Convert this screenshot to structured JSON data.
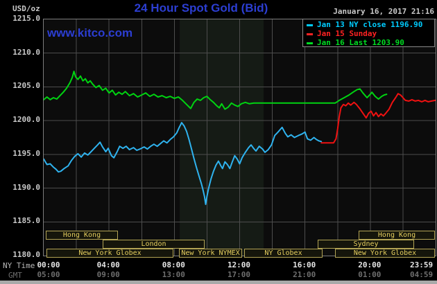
{
  "header": {
    "unit": "USD/oz",
    "title": "24 Hour Spot Gold (Bid)",
    "datetime": "January 16, 2017 21:16",
    "watermark": "www.kitco.com"
  },
  "legend": {
    "items": [
      {
        "label": "Jan 13 NY close 1196.90",
        "color": "#00ccff"
      },
      {
        "label": "Jan 15 Sunday",
        "color": "#ff2222"
      },
      {
        "label": "Jan 16 Last 1203.90",
        "color": "#00dd22"
      }
    ]
  },
  "axes": {
    "ny_label": "NY Time",
    "gmt_label": "GMT",
    "y_ticks": [
      "1215.0",
      "1210.0",
      "1205.0",
      "1200.0",
      "1195.0",
      "1190.0",
      "1185.0",
      "1180.0"
    ],
    "x_ticks_ny": [
      "00:00",
      "04:00",
      "08:00",
      "12:00",
      "16:00",
      "20:00",
      "23:59"
    ],
    "x_ticks_gmt": [
      "05:00",
      "09:00",
      "13:00",
      "17:00",
      "21:00",
      "01:00",
      "04:59"
    ],
    "x_tick_hours": [
      0,
      4,
      8,
      12,
      16,
      20,
      23.983
    ]
  },
  "sessions": {
    "rows": [
      [
        {
          "name": "Hong Kong",
          "start": 0.17,
          "end": 4.59
        },
        {
          "name": "Hong Kong",
          "start": 19.33,
          "end": 24
        }
      ],
      [
        {
          "name": "London",
          "start": 3.65,
          "end": 9.9
        },
        {
          "name": "Sydney",
          "start": 16.83,
          "end": 22.73
        }
      ],
      [
        {
          "name": "New York Globex",
          "start": 0.21,
          "end": 7.99
        },
        {
          "name": "New York NYMEX",
          "start": 8.33,
          "end": 12.19
        },
        {
          "name": "NY Globex",
          "start": 12.32,
          "end": 17.12
        },
        {
          "name": "New York Globex",
          "start": 17.89,
          "end": 24
        }
      ]
    ]
  },
  "colors": {
    "background": "#000000",
    "plot_background": "#0c0c0c",
    "nymex_band": "#151b15",
    "grid": "#4d4d4d",
    "plot_border": "#7d7d7d",
    "title_blue": "#2c3ed2",
    "axis_text": "#c9c9c9",
    "gmt_text": "#6e6e6e",
    "session_border": "#b3a455",
    "session_text": "#e6cf5f"
  },
  "chart_data": {
    "type": "line",
    "title": "24 Hour Spot Gold (Bid)",
    "ylabel": "USD/oz",
    "ylim": [
      1180,
      1215
    ],
    "y_tick_step": 5,
    "xlim_hours": [
      0,
      24
    ],
    "grid": true,
    "x_grid_step_hours": 2,
    "legend_position": "top-right",
    "nymex_band_hours": [
      8.33,
      13.47
    ],
    "series": [
      {
        "name": "Jan 13 NY close",
        "close_value": 1196.9,
        "line_color": "#2fb3ef",
        "points": [
          [
            0,
            1194.3
          ],
          [
            0.2,
            1193.5
          ],
          [
            0.4,
            1193.6
          ],
          [
            0.6,
            1193.1
          ],
          [
            0.75,
            1192.8
          ],
          [
            0.9,
            1192.4
          ],
          [
            1.05,
            1192.5
          ],
          [
            1.25,
            1192.9
          ],
          [
            1.5,
            1193.3
          ],
          [
            1.7,
            1194.1
          ],
          [
            1.9,
            1194.7
          ],
          [
            2.1,
            1195.1
          ],
          [
            2.3,
            1194.6
          ],
          [
            2.5,
            1195.2
          ],
          [
            2.7,
            1194.9
          ],
          [
            2.9,
            1195.4
          ],
          [
            3.1,
            1195.9
          ],
          [
            3.3,
            1196.4
          ],
          [
            3.45,
            1196.8
          ],
          [
            3.6,
            1196.1
          ],
          [
            3.8,
            1195.4
          ],
          [
            3.95,
            1195.9
          ],
          [
            4.15,
            1194.8
          ],
          [
            4.3,
            1194.5
          ],
          [
            4.5,
            1195.4
          ],
          [
            4.65,
            1196.2
          ],
          [
            4.85,
            1195.9
          ],
          [
            5.05,
            1196.2
          ],
          [
            5.25,
            1195.7
          ],
          [
            5.5,
            1196.0
          ],
          [
            5.7,
            1195.6
          ],
          [
            5.9,
            1195.8
          ],
          [
            6.15,
            1196.1
          ],
          [
            6.35,
            1195.8
          ],
          [
            6.55,
            1196.2
          ],
          [
            6.75,
            1196.5
          ],
          [
            6.95,
            1196.2
          ],
          [
            7.15,
            1196.6
          ],
          [
            7.35,
            1197.0
          ],
          [
            7.55,
            1196.7
          ],
          [
            7.75,
            1197.2
          ],
          [
            7.95,
            1197.6
          ],
          [
            8.15,
            1198.2
          ],
          [
            8.3,
            1199.0
          ],
          [
            8.45,
            1199.7
          ],
          [
            8.6,
            1199.2
          ],
          [
            8.75,
            1198.4
          ],
          [
            8.9,
            1197.2
          ],
          [
            9.05,
            1195.8
          ],
          [
            9.2,
            1194.4
          ],
          [
            9.35,
            1193.1
          ],
          [
            9.5,
            1191.9
          ],
          [
            9.65,
            1190.7
          ],
          [
            9.75,
            1189.8
          ],
          [
            9.85,
            1188.7
          ],
          [
            9.92,
            1187.6
          ],
          [
            10.0,
            1188.8
          ],
          [
            10.1,
            1190.0
          ],
          [
            10.25,
            1191.4
          ],
          [
            10.4,
            1192.5
          ],
          [
            10.55,
            1193.4
          ],
          [
            10.7,
            1194.0
          ],
          [
            10.85,
            1193.3
          ],
          [
            10.95,
            1192.9
          ],
          [
            11.1,
            1193.9
          ],
          [
            11.25,
            1193.5
          ],
          [
            11.4,
            1192.9
          ],
          [
            11.55,
            1193.9
          ],
          [
            11.7,
            1194.8
          ],
          [
            11.85,
            1194.3
          ],
          [
            12.0,
            1193.6
          ],
          [
            12.15,
            1194.5
          ],
          [
            12.35,
            1195.3
          ],
          [
            12.55,
            1196.0
          ],
          [
            12.7,
            1196.4
          ],
          [
            12.85,
            1195.9
          ],
          [
            13.0,
            1195.5
          ],
          [
            13.2,
            1196.2
          ],
          [
            13.4,
            1195.8
          ],
          [
            13.55,
            1195.3
          ],
          [
            13.75,
            1195.7
          ],
          [
            13.95,
            1196.4
          ],
          [
            14.15,
            1197.8
          ],
          [
            14.35,
            1198.3
          ],
          [
            14.6,
            1199.0
          ],
          [
            14.8,
            1198.1
          ],
          [
            14.95,
            1197.6
          ],
          [
            15.15,
            1197.9
          ],
          [
            15.35,
            1197.5
          ],
          [
            15.6,
            1197.8
          ],
          [
            15.8,
            1198.0
          ],
          [
            16.0,
            1198.3
          ],
          [
            16.15,
            1197.3
          ],
          [
            16.35,
            1197.1
          ],
          [
            16.55,
            1197.5
          ],
          [
            16.7,
            1197.2
          ],
          [
            16.85,
            1197.0
          ],
          [
            17.0,
            1196.9
          ]
        ]
      },
      {
        "name": "Jan 15 Sunday",
        "line_color": "#f01111",
        "points": [
          [
            17.0,
            1196.7
          ],
          [
            17.75,
            1196.7
          ],
          [
            17.9,
            1197.3
          ],
          [
            18.0,
            1198.8
          ],
          [
            18.1,
            1200.6
          ],
          [
            18.2,
            1201.9
          ],
          [
            18.35,
            1202.4
          ],
          [
            18.5,
            1202.2
          ],
          [
            18.65,
            1202.6
          ],
          [
            18.8,
            1202.3
          ],
          [
            19.0,
            1202.7
          ],
          [
            19.15,
            1202.4
          ],
          [
            19.35,
            1201.8
          ],
          [
            19.55,
            1201.1
          ],
          [
            19.75,
            1200.4
          ],
          [
            19.9,
            1201.1
          ],
          [
            20.05,
            1201.4
          ],
          [
            20.2,
            1200.7
          ],
          [
            20.35,
            1201.2
          ],
          [
            20.5,
            1200.6
          ],
          [
            20.65,
            1201.0
          ],
          [
            20.8,
            1200.7
          ],
          [
            20.95,
            1201.1
          ],
          [
            21.15,
            1201.7
          ],
          [
            21.35,
            1202.7
          ],
          [
            21.55,
            1203.4
          ],
          [
            21.7,
            1204.0
          ],
          [
            21.85,
            1203.8
          ],
          [
            22.0,
            1203.4
          ],
          [
            22.15,
            1203.0
          ],
          [
            22.35,
            1202.9
          ],
          [
            22.55,
            1203.1
          ],
          [
            22.75,
            1202.9
          ],
          [
            22.95,
            1203.0
          ],
          [
            23.15,
            1202.8
          ],
          [
            23.35,
            1203.0
          ],
          [
            23.55,
            1202.8
          ],
          [
            23.75,
            1202.9
          ],
          [
            23.98,
            1203.0
          ]
        ]
      },
      {
        "name": "Jan 16 Last",
        "last_value": 1203.9,
        "line_color": "#00d411",
        "points": [
          [
            0,
            1203.1
          ],
          [
            0.2,
            1203.5
          ],
          [
            0.4,
            1203.1
          ],
          [
            0.6,
            1203.4
          ],
          [
            0.8,
            1203.2
          ],
          [
            1.0,
            1203.7
          ],
          [
            1.2,
            1204.2
          ],
          [
            1.4,
            1204.8
          ],
          [
            1.6,
            1205.6
          ],
          [
            1.75,
            1206.4
          ],
          [
            1.85,
            1207.3
          ],
          [
            1.95,
            1206.5
          ],
          [
            2.1,
            1206.1
          ],
          [
            2.25,
            1206.6
          ],
          [
            2.4,
            1205.9
          ],
          [
            2.55,
            1206.2
          ],
          [
            2.7,
            1205.6
          ],
          [
            2.85,
            1205.9
          ],
          [
            3.0,
            1205.4
          ],
          [
            3.2,
            1204.9
          ],
          [
            3.4,
            1205.2
          ],
          [
            3.6,
            1204.5
          ],
          [
            3.8,
            1204.8
          ],
          [
            4.0,
            1204.1
          ],
          [
            4.2,
            1204.5
          ],
          [
            4.4,
            1203.8
          ],
          [
            4.6,
            1204.2
          ],
          [
            4.8,
            1203.9
          ],
          [
            5.0,
            1204.3
          ],
          [
            5.25,
            1203.7
          ],
          [
            5.5,
            1204.0
          ],
          [
            5.75,
            1203.5
          ],
          [
            6.0,
            1203.8
          ],
          [
            6.25,
            1204.1
          ],
          [
            6.5,
            1203.6
          ],
          [
            6.75,
            1203.9
          ],
          [
            7.0,
            1203.5
          ],
          [
            7.25,
            1203.7
          ],
          [
            7.5,
            1203.4
          ],
          [
            7.75,
            1203.6
          ],
          [
            8.0,
            1203.3
          ],
          [
            8.25,
            1203.5
          ],
          [
            8.5,
            1203.0
          ],
          [
            8.75,
            1202.4
          ],
          [
            9.0,
            1201.8
          ],
          [
            9.2,
            1202.7
          ],
          [
            9.4,
            1203.2
          ],
          [
            9.6,
            1203.0
          ],
          [
            9.8,
            1203.4
          ],
          [
            10.0,
            1203.6
          ],
          [
            10.2,
            1203.1
          ],
          [
            10.4,
            1202.7
          ],
          [
            10.6,
            1202.2
          ],
          [
            10.75,
            1201.9
          ],
          [
            10.9,
            1202.5
          ],
          [
            11.1,
            1201.7
          ],
          [
            11.3,
            1202.0
          ],
          [
            11.5,
            1202.6
          ],
          [
            11.7,
            1202.3
          ],
          [
            11.9,
            1202.1
          ],
          [
            12.1,
            1202.5
          ],
          [
            12.35,
            1202.7
          ],
          [
            12.6,
            1202.5
          ],
          [
            12.87,
            1202.6
          ],
          [
            17.85,
            1202.6
          ],
          [
            18.1,
            1203.0
          ],
          [
            18.4,
            1203.4
          ],
          [
            18.7,
            1203.8
          ],
          [
            19.0,
            1204.3
          ],
          [
            19.2,
            1204.6
          ],
          [
            19.37,
            1204.7
          ],
          [
            19.55,
            1204.1
          ],
          [
            19.8,
            1203.4
          ],
          [
            20.0,
            1203.9
          ],
          [
            20.1,
            1204.2
          ],
          [
            20.3,
            1203.6
          ],
          [
            20.5,
            1203.2
          ],
          [
            20.7,
            1203.6
          ],
          [
            20.85,
            1203.8
          ],
          [
            21.0,
            1203.9
          ]
        ]
      }
    ]
  }
}
